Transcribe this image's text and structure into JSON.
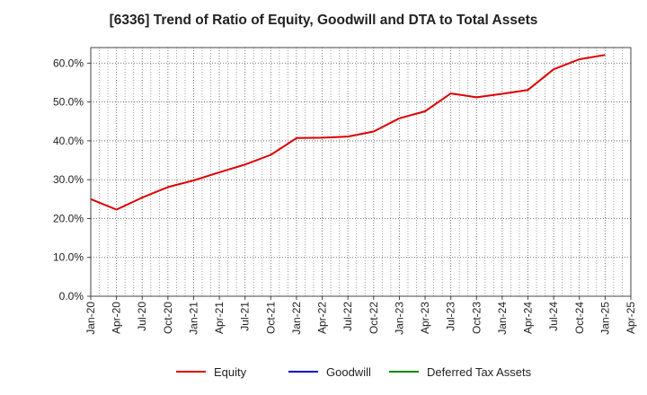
{
  "chart_data": {
    "type": "line",
    "title": "[6336]  Trend of Ratio of Equity, Goodwill and DTA to Total Assets",
    "xlabel": "",
    "ylabel": "",
    "ylim": [
      0,
      64
    ],
    "y_ticks": [
      0,
      10,
      20,
      30,
      40,
      50,
      60
    ],
    "y_tick_labels": [
      "0.0%",
      "10.0%",
      "20.0%",
      "30.0%",
      "40.0%",
      "50.0%",
      "60.0%"
    ],
    "x_tick_labels": [
      "Jan-20",
      "Apr-20",
      "Jul-20",
      "Oct-20",
      "Jan-21",
      "Apr-21",
      "Jul-21",
      "Oct-21",
      "Jan-22",
      "Apr-22",
      "Jul-22",
      "Oct-22",
      "Jan-23",
      "Apr-23",
      "Jul-23",
      "Oct-23",
      "Jan-24",
      "Apr-24",
      "Jul-24",
      "Oct-24",
      "Jan-25",
      "Apr-25"
    ],
    "grid": true,
    "legend_position": "bottom",
    "series": [
      {
        "name": "Equity",
        "color": "#dd0000",
        "values": [
          25.0,
          22.3,
          25.4,
          28.1,
          29.8,
          31.9,
          33.9,
          36.4,
          40.7,
          40.8,
          41.1,
          42.4,
          45.8,
          47.6,
          52.2,
          51.2,
          52.1,
          53.1,
          58.4,
          61.0,
          62.1
        ]
      },
      {
        "name": "Goodwill",
        "color": "#0000cc",
        "values": []
      },
      {
        "name": "Deferred Tax Assets",
        "color": "#008800",
        "values": []
      }
    ]
  }
}
